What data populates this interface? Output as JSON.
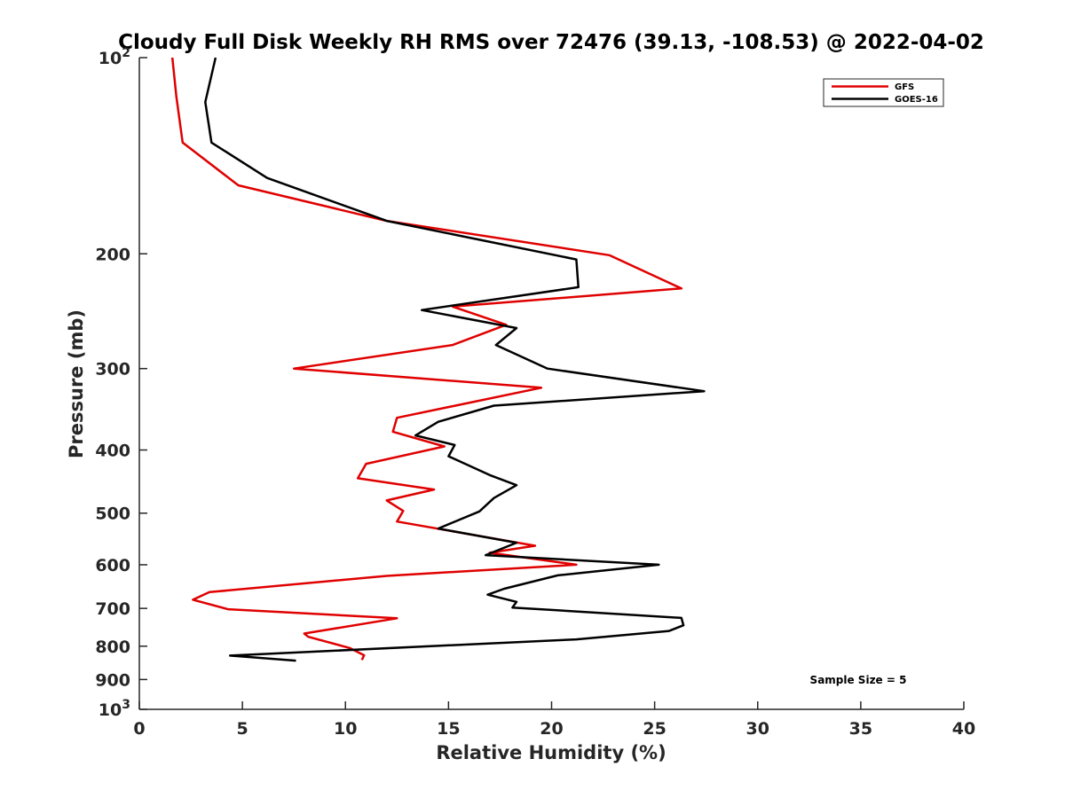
{
  "chart_data": {
    "type": "line",
    "title": "Cloudy Full Disk Weekly RH RMS over 72476 (39.13, -108.53) @ 2022-04-02",
    "xlabel": "Relative Humidity (%)",
    "ylabel": "Pressure (mb)",
    "xlim": [
      0,
      40
    ],
    "ylim": [
      1000,
      100
    ],
    "yscale": "log",
    "y_reversed": true,
    "grid": false,
    "legend_position": "top-right",
    "x_ticks": [
      {
        "value": 0,
        "label": "0"
      },
      {
        "value": 5,
        "label": "5"
      },
      {
        "value": 10,
        "label": "10"
      },
      {
        "value": 15,
        "label": "15"
      },
      {
        "value": 20,
        "label": "20"
      },
      {
        "value": 25,
        "label": "25"
      },
      {
        "value": 30,
        "label": "30"
      },
      {
        "value": 35,
        "label": "35"
      },
      {
        "value": 40,
        "label": "40"
      }
    ],
    "y_ticks": [
      {
        "value": 100,
        "base": "10",
        "exp": "2"
      },
      {
        "value": 200,
        "label": "200"
      },
      {
        "value": 300,
        "label": "300"
      },
      {
        "value": 400,
        "label": "400"
      },
      {
        "value": 500,
        "label": "500"
      },
      {
        "value": 600,
        "label": "600"
      },
      {
        "value": 700,
        "label": "700"
      },
      {
        "value": 800,
        "label": "800"
      },
      {
        "value": 900,
        "label": "900"
      },
      {
        "value": 1000,
        "base": "10",
        "exp": "3"
      }
    ],
    "series": [
      {
        "name": "GFS",
        "color": "#e00000",
        "points": [
          [
            1.6,
            100
          ],
          [
            1.8,
            115
          ],
          [
            2.1,
            135
          ],
          [
            4.8,
            157
          ],
          [
            12.0,
            178
          ],
          [
            22.8,
            201
          ],
          [
            26.3,
            226
          ],
          [
            15.2,
            241
          ],
          [
            17.8,
            257
          ],
          [
            15.2,
            276
          ],
          [
            7.5,
            300
          ],
          [
            19.5,
            321
          ],
          [
            12.5,
            357
          ],
          [
            12.3,
            375
          ],
          [
            14.8,
            395
          ],
          [
            11.0,
            420
          ],
          [
            10.6,
            442
          ],
          [
            14.3,
            460
          ],
          [
            12.0,
            478
          ],
          [
            12.8,
            496
          ],
          [
            12.5,
            515
          ],
          [
            19.2,
            561
          ],
          [
            17.0,
            575
          ],
          [
            21.2,
            600
          ],
          [
            12.0,
            624
          ],
          [
            3.4,
            661
          ],
          [
            2.6,
            679
          ],
          [
            4.3,
            702
          ],
          [
            12.5,
            725
          ],
          [
            8.0,
            765
          ],
          [
            8.2,
            774
          ],
          [
            10.2,
            805
          ],
          [
            10.9,
            826
          ],
          [
            10.8,
            840
          ]
        ]
      },
      {
        "name": "GOES-16",
        "color": "#000000",
        "points": [
          [
            3.7,
            100
          ],
          [
            3.2,
            117
          ],
          [
            3.5,
            135
          ],
          [
            6.2,
            153
          ],
          [
            12.0,
            178
          ],
          [
            21.2,
            204
          ],
          [
            21.3,
            225
          ],
          [
            13.7,
            244
          ],
          [
            18.3,
            260
          ],
          [
            17.3,
            276
          ],
          [
            19.8,
            300
          ],
          [
            27.4,
            325
          ],
          [
            17.2,
            342
          ],
          [
            14.5,
            362
          ],
          [
            13.4,
            380
          ],
          [
            15.3,
            393
          ],
          [
            15.0,
            409
          ],
          [
            17.0,
            437
          ],
          [
            18.3,
            453
          ],
          [
            17.2,
            474
          ],
          [
            16.5,
            497
          ],
          [
            14.5,
            528
          ],
          [
            18.3,
            555
          ],
          [
            16.8,
            580
          ],
          [
            25.2,
            600
          ],
          [
            20.3,
            623
          ],
          [
            17.7,
            653
          ],
          [
            16.9,
            667
          ],
          [
            18.3,
            684
          ],
          [
            18.1,
            698
          ],
          [
            26.3,
            724
          ],
          [
            26.4,
            743
          ],
          [
            25.7,
            758
          ],
          [
            21.2,
            781
          ],
          [
            4.4,
            827
          ],
          [
            7.6,
            842
          ]
        ]
      }
    ],
    "annotation": "Sample Size = 5"
  }
}
